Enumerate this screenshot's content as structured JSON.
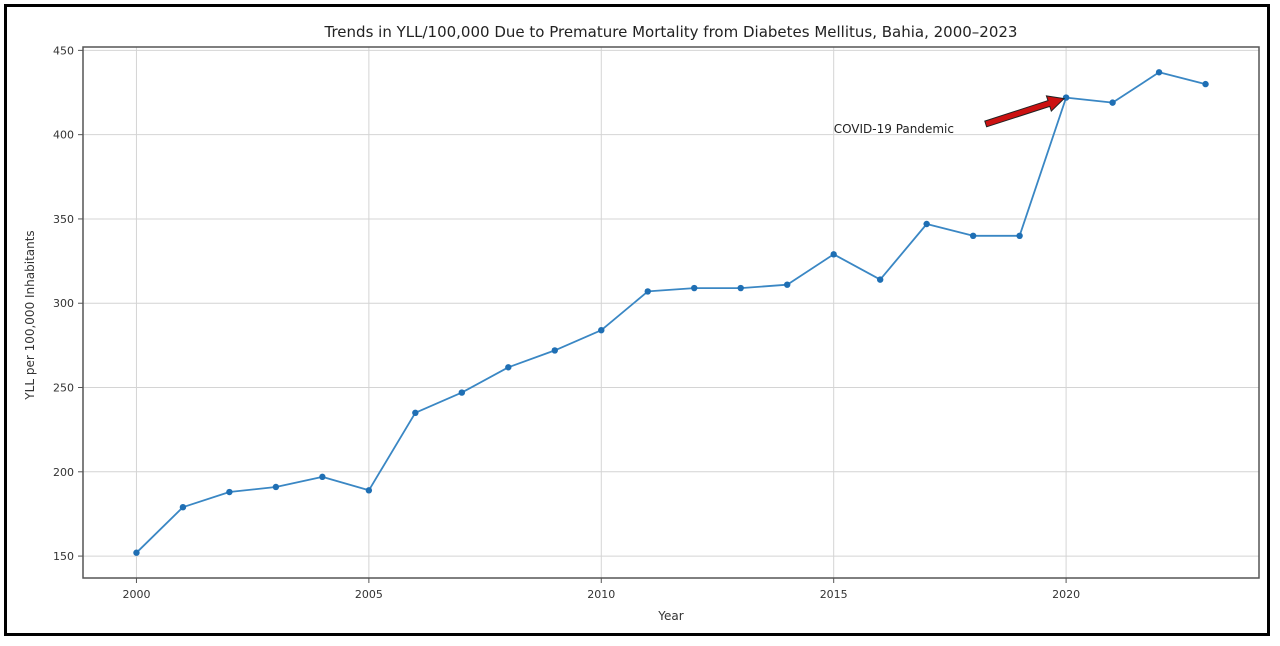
{
  "chart_data": {
    "type": "line",
    "title": "Trends in YLL/100,000 Due to Premature Mortality from Diabetes Mellitus, Bahia, 2000–2023",
    "xlabel": "Year",
    "ylabel": "YLL per 100,000 Inhabitants",
    "xlim": [
      1998.85,
      2024.15
    ],
    "ylim": [
      137,
      452
    ],
    "x": [
      2000,
      2001,
      2002,
      2003,
      2004,
      2005,
      2006,
      2007,
      2008,
      2009,
      2010,
      2011,
      2012,
      2013,
      2014,
      2015,
      2016,
      2017,
      2018,
      2019,
      2020,
      2021,
      2022,
      2023
    ],
    "y": [
      152,
      179,
      188,
      191,
      197,
      189,
      235,
      247,
      262,
      272,
      284,
      307,
      309,
      309,
      311,
      329,
      314,
      347,
      340,
      340,
      422,
      419,
      437,
      430
    ],
    "xticks": [
      2000,
      2005,
      2010,
      2015,
      2020
    ],
    "yticks": [
      150,
      200,
      250,
      300,
      350,
      400,
      450
    ],
    "grid": true,
    "line_color": "#3a87c4",
    "annotation": {
      "text": "COVID-19 Pandemic",
      "text_x": 2015,
      "text_y": 401,
      "arrow_to_x": 2020,
      "arrow_to_y": 422,
      "arrow_color": "#cc1111"
    }
  }
}
